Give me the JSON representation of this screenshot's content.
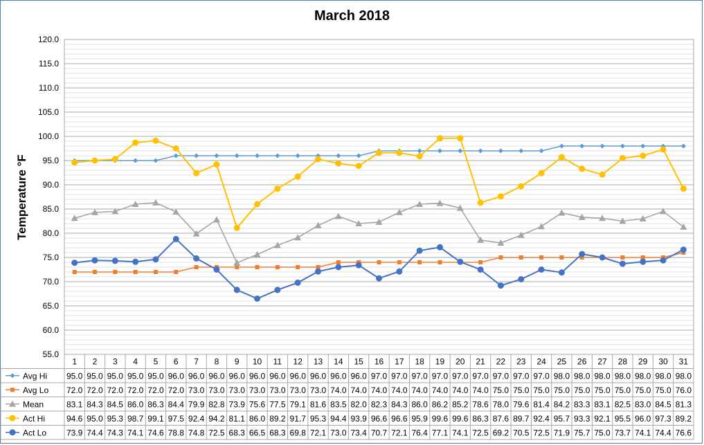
{
  "chart_data": {
    "type": "line",
    "title": "March 2018",
    "ylabel": "Temperature °F",
    "xlabel": "",
    "ylim": [
      55.0,
      120.0
    ],
    "ytick_step": 5.0,
    "minor_grid_step": 1.0,
    "grid": true,
    "legend": "data-table",
    "categories": [
      "1",
      "2",
      "3",
      "4",
      "5",
      "6",
      "7",
      "8",
      "9",
      "10",
      "11",
      "12",
      "13",
      "14",
      "15",
      "16",
      "17",
      "18",
      "19",
      "20",
      "21",
      "22",
      "23",
      "24",
      "25",
      "26",
      "27",
      "28",
      "29",
      "30",
      "31"
    ],
    "series": [
      {
        "name": "Avg Hi",
        "color": "#5b9bd5",
        "marker": "diamond",
        "values": [
          95.0,
          95.0,
          95.0,
          95.0,
          95.0,
          96.0,
          96.0,
          96.0,
          96.0,
          96.0,
          96.0,
          96.0,
          96.0,
          96.0,
          96.0,
          97.0,
          97.0,
          97.0,
          97.0,
          97.0,
          97.0,
          97.0,
          97.0,
          97.0,
          98.0,
          98.0,
          98.0,
          98.0,
          98.0,
          98.0,
          98.0
        ]
      },
      {
        "name": "Avg Lo",
        "color": "#ed7d31",
        "marker": "square",
        "values": [
          72.0,
          72.0,
          72.0,
          72.0,
          72.0,
          72.0,
          73.0,
          73.0,
          73.0,
          73.0,
          73.0,
          73.0,
          73.0,
          74.0,
          74.0,
          74.0,
          74.0,
          74.0,
          74.0,
          74.0,
          74.0,
          75.0,
          75.0,
          75.0,
          75.0,
          75.0,
          75.0,
          75.0,
          75.0,
          75.0,
          76.0
        ]
      },
      {
        "name": "Mean",
        "color": "#a5a5a5",
        "marker": "triangle",
        "values": [
          83.1,
          84.3,
          84.5,
          86.0,
          86.3,
          84.4,
          79.9,
          82.8,
          73.9,
          75.6,
          77.5,
          79.1,
          81.6,
          83.5,
          82.0,
          82.3,
          84.3,
          86.0,
          86.2,
          85.2,
          78.6,
          78.0,
          79.6,
          81.4,
          84.2,
          83.3,
          83.1,
          82.5,
          83.0,
          84.5,
          81.3
        ]
      },
      {
        "name": "Act Hi",
        "color": "#ffc000",
        "marker": "circle",
        "values": [
          94.6,
          95.0,
          95.3,
          98.7,
          99.1,
          97.5,
          92.4,
          94.2,
          81.1,
          86.0,
          89.2,
          91.7,
          95.3,
          94.4,
          93.9,
          96.6,
          96.6,
          95.9,
          99.6,
          99.6,
          86.3,
          87.6,
          89.7,
          92.4,
          95.7,
          93.3,
          92.1,
          95.5,
          96.0,
          97.3,
          89.2
        ]
      },
      {
        "name": "Act Lo",
        "color": "#4472c4",
        "marker": "circle",
        "values": [
          73.9,
          74.4,
          74.3,
          74.1,
          74.6,
          78.8,
          74.8,
          72.5,
          68.3,
          66.5,
          68.3,
          69.8,
          72.1,
          73.0,
          73.4,
          70.7,
          72.1,
          76.4,
          77.1,
          74.1,
          72.5,
          69.2,
          70.5,
          72.5,
          71.9,
          75.7,
          75.0,
          73.7,
          74.1,
          74.4,
          76.6
        ]
      }
    ]
  }
}
